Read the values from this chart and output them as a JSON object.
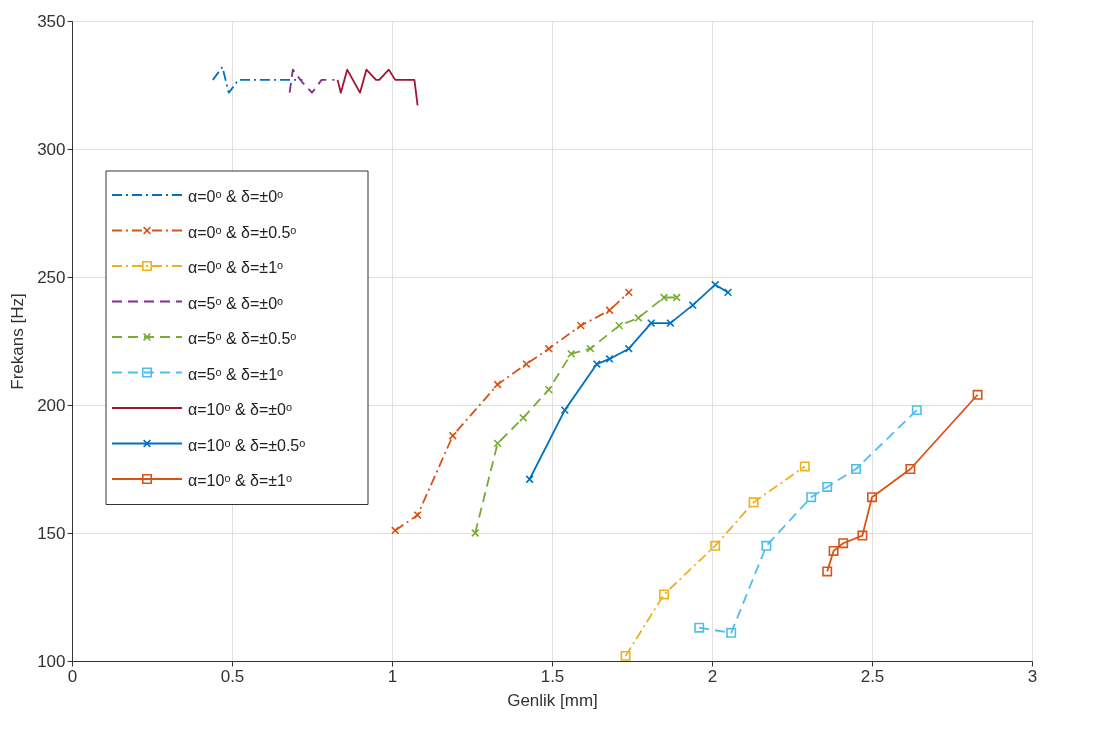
{
  "chart_data": {
    "type": "line",
    "xlabel": "Genlik [mm]",
    "ylabel": "Frekans [Hz]",
    "xlim": [
      0,
      3
    ],
    "xticks": [
      0,
      0.5,
      1,
      1.5,
      2,
      2.5,
      3
    ],
    "ylim": [
      100,
      350
    ],
    "yticks": [
      100,
      150,
      200,
      250,
      300,
      350
    ],
    "grid": true,
    "legend": "top left",
    "series": [
      {
        "name": "α=0ᵒ & δ=±0ᵒ",
        "color": "#0072bd",
        "line_style": "dashdot",
        "marker": "none",
        "x": [
          0.44,
          0.47,
          0.49,
          0.52,
          0.6,
          0.68,
          0.72
        ],
        "values": [
          327,
          332,
          322,
          327,
          327,
          327,
          327
        ]
      },
      {
        "name": "α=0ᵒ & δ=±0.5ᵒ",
        "color": "#d95319",
        "line_style": "dashdot",
        "marker": "cross",
        "x": [
          1.01,
          1.08,
          1.19,
          1.33,
          1.42,
          1.49,
          1.59,
          1.68,
          1.74
        ],
        "values": [
          151,
          157,
          188,
          208,
          216,
          222,
          231,
          237,
          244
        ]
      },
      {
        "name": "α=0ᵒ & δ=±1ᵒ",
        "color": "#edb120",
        "line_style": "dashdot",
        "marker": "square",
        "x": [
          1.73,
          1.85,
          2.01,
          2.13,
          2.29
        ],
        "values": [
          102,
          126,
          145,
          162,
          176
        ]
      },
      {
        "name": "α=5ᵒ & δ=±0ᵒ",
        "color": "#7e2f8e",
        "line_style": "dashed",
        "marker": "none",
        "x": [
          0.68,
          0.69,
          0.72,
          0.75,
          0.78,
          0.82
        ],
        "values": [
          322,
          331,
          326,
          322,
          327,
          327
        ]
      },
      {
        "name": "α=5ᵒ & δ=±0.5ᵒ",
        "color": "#77ac30",
        "line_style": "dashed",
        "marker": "cross",
        "x": [
          1.26,
          1.33,
          1.41,
          1.49,
          1.56,
          1.62,
          1.71,
          1.77,
          1.85,
          1.89
        ],
        "values": [
          150,
          185,
          195,
          206,
          220,
          222,
          231,
          234,
          242,
          242
        ]
      },
      {
        "name": "α=5ᵒ & δ=±1ᵒ",
        "color": "#4dbeee",
        "line_style": "dashed",
        "marker": "square",
        "x": [
          1.96,
          2.06,
          2.17,
          2.31,
          2.36,
          2.45,
          2.64
        ],
        "values": [
          113,
          111,
          145,
          164,
          168,
          175,
          198
        ]
      },
      {
        "name": "α=10ᵒ & δ=±0ᵒ",
        "color": "#a2142f",
        "line_style": "solid",
        "marker": "none",
        "x": [
          0.83,
          0.84,
          0.86,
          0.9,
          0.92,
          0.95,
          0.96,
          0.99,
          1.01,
          1.07,
          1.08
        ],
        "values": [
          327,
          322,
          331,
          322,
          331,
          327,
          327,
          331,
          327,
          327,
          317
        ]
      },
      {
        "name": "α=10ᵒ & δ=±0.5ᵒ",
        "color": "#0072bd",
        "line_style": "solid",
        "marker": "cross",
        "x": [
          1.43,
          1.54,
          1.64,
          1.68,
          1.74,
          1.81,
          1.87,
          1.94,
          2.01,
          2.05
        ],
        "values": [
          171,
          198,
          216,
          218,
          222,
          232,
          232,
          239,
          247,
          244
        ]
      },
      {
        "name": "α=10ᵒ & δ=±1ᵒ",
        "color": "#d95319",
        "line_style": "solid",
        "marker": "square",
        "x": [
          2.36,
          2.38,
          2.41,
          2.47,
          2.5,
          2.62,
          2.83
        ],
        "values": [
          135,
          143,
          146,
          149,
          164,
          175,
          204
        ]
      }
    ]
  }
}
